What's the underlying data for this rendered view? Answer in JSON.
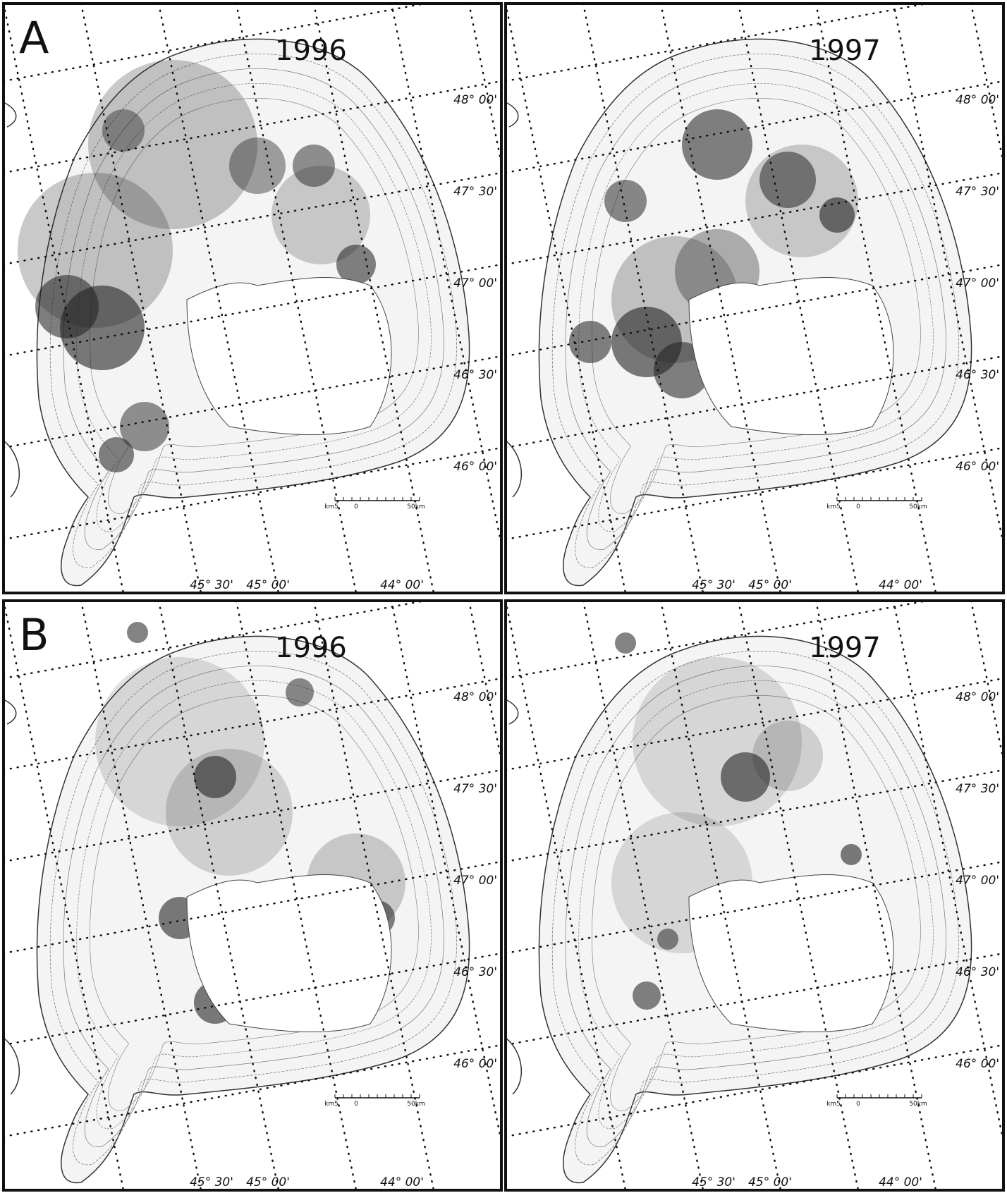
{
  "panels": [
    {
      "label": "A",
      "year": "1996",
      "lat_labels": [
        "48° 00'",
        "47° 30'",
        "47° 00'",
        "46° 30'",
        "46° 00'"
      ],
      "lon_labels": [
        "45° 30'",
        "45° 00'",
        "44° 00'"
      ],
      "scale": [
        "km5",
        "0",
        "50km"
      ]
    },
    {
      "year": "1997",
      "lat_labels": [
        "48° 00'",
        "47° 30'",
        "47° 00'",
        "46° 30'",
        "46° 00'"
      ],
      "lon_labels": [
        "45° 30'",
        "45° 00'",
        "44° 00'"
      ],
      "scale": [
        "km5",
        "0",
        "50km"
      ]
    },
    {
      "label": "B",
      "year": "1996",
      "lat_labels": [
        "48° 00'",
        "47° 30'",
        "47° 00'",
        "46° 30'",
        "46° 00'"
      ],
      "lon_labels": [
        "45° 30'",
        "45° 00'",
        "44° 00'"
      ],
      "scale": [
        "km5",
        "0",
        "50km"
      ]
    },
    {
      "year": "1997",
      "lat_labels": [
        "48° 00'",
        "47° 30'",
        "47° 00'",
        "46° 30'",
        "46° 00'"
      ],
      "lon_labels": [
        "45° 30'",
        "45° 00'",
        "44° 00'"
      ],
      "scale": [
        "km5",
        "0",
        "50km"
      ]
    }
  ]
}
